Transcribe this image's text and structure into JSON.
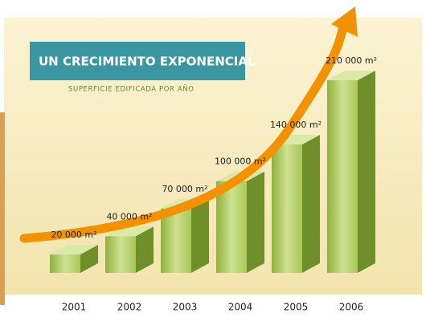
{
  "chart_data": {
    "type": "bar",
    "title": "UN CRECIMIENTO EXPONENCIAL",
    "subtitle": "SUPERFICIE EDIFICADA POR AÑO",
    "categories": [
      "2001",
      "2002",
      "2003",
      "2004",
      "2005",
      "2006"
    ],
    "values": [
      20000,
      40000,
      70000,
      100000,
      140000,
      210000
    ],
    "value_labels": [
      "20 000 m²",
      "40 000 m²",
      "70 000 m²",
      "100 000 m²",
      "140 000 m²",
      "210 000 m²"
    ],
    "color": "#a9c75a",
    "arrow_color": "#f39200",
    "title_box_color": "#3a96a0"
  }
}
